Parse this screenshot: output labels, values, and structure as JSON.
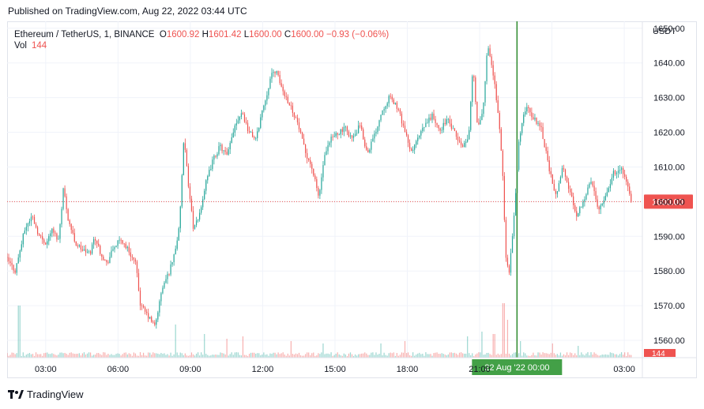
{
  "header": {
    "published": "Published on TradingView.com, Aug 22, 2022 03:44 UTC"
  },
  "legend": {
    "symbol": "Ethereum / TetherUS, 1, BINANCE",
    "open_label": "O",
    "open": "1600.92",
    "high_label": "H",
    "high": "1601.42",
    "low_label": "L",
    "low": "1600.00",
    "close_label": "C",
    "close": "1600.00",
    "change": "−0.93 (−0.06%)",
    "vol_label": "Vol",
    "vol": "144"
  },
  "price_axis": {
    "currency": "USDT"
  },
  "footer": {
    "brand": "TradingView"
  },
  "chart_data": {
    "type": "candlestick",
    "ylim": [
      1555,
      1652
    ],
    "y_ticks": [
      1560,
      1570,
      1580,
      1590,
      1600,
      1610,
      1620,
      1630,
      1640,
      1650
    ],
    "y_tick_labels": [
      "1560.00",
      "1570.00",
      "1580.00",
      "1590.00",
      "1600.00",
      "1610.00",
      "1620.00",
      "1630.00",
      "1640.00",
      "1650.00"
    ],
    "x_tick_labels": [
      "03:00",
      "06:00",
      "09:00",
      "12:00",
      "15:00",
      "18:00",
      "21:00",
      "00:00",
      "03:00"
    ],
    "x_tick_hours": [
      3,
      6,
      9,
      12,
      15,
      18,
      21,
      24,
      27
    ],
    "x_range_hours": [
      1.4,
      27.75
    ],
    "last_price": 1600.0,
    "last_price_label": "1600.00",
    "last_volume_label": "144",
    "crosshair": {
      "hour": 22.55,
      "label": "22 Aug '22   00:00"
    },
    "colors": {
      "up": "#26a69a",
      "down": "#ef5350",
      "crosshair": "#2e8b2e",
      "label_bg": "#43a047"
    },
    "price_path": [
      [
        1.4,
        1584
      ],
      [
        1.8,
        1580
      ],
      [
        2.2,
        1592
      ],
      [
        2.5,
        1596
      ],
      [
        2.8,
        1590
      ],
      [
        3.1,
        1588
      ],
      [
        3.3,
        1592
      ],
      [
        3.6,
        1589
      ],
      [
        3.8,
        1604
      ],
      [
        4.0,
        1595
      ],
      [
        4.3,
        1588
      ],
      [
        4.6,
        1586
      ],
      [
        4.9,
        1585
      ],
      [
        5.1,
        1590
      ],
      [
        5.3,
        1586
      ],
      [
        5.6,
        1582
      ],
      [
        5.9,
        1587
      ],
      [
        6.2,
        1589
      ],
      [
        6.5,
        1586
      ],
      [
        6.8,
        1582
      ],
      [
        7.0,
        1570
      ],
      [
        7.3,
        1567
      ],
      [
        7.6,
        1564
      ],
      [
        7.9,
        1575
      ],
      [
        8.2,
        1580
      ],
      [
        8.4,
        1585
      ],
      [
        8.6,
        1592
      ],
      [
        8.8,
        1618
      ],
      [
        9.0,
        1604
      ],
      [
        9.2,
        1592
      ],
      [
        9.4,
        1595
      ],
      [
        9.7,
        1605
      ],
      [
        10.0,
        1612
      ],
      [
        10.3,
        1616
      ],
      [
        10.6,
        1613
      ],
      [
        10.9,
        1622
      ],
      [
        11.2,
        1626
      ],
      [
        11.5,
        1620
      ],
      [
        11.8,
        1618
      ],
      [
        12.0,
        1625
      ],
      [
        12.2,
        1630
      ],
      [
        12.4,
        1636
      ],
      [
        12.6,
        1638
      ],
      [
        12.9,
        1632
      ],
      [
        13.2,
        1628
      ],
      [
        13.5,
        1623
      ],
      [
        13.8,
        1615
      ],
      [
        14.1,
        1610
      ],
      [
        14.4,
        1601
      ],
      [
        14.6,
        1612
      ],
      [
        14.9,
        1618
      ],
      [
        15.2,
        1620
      ],
      [
        15.5,
        1621
      ],
      [
        15.8,
        1618
      ],
      [
        16.1,
        1622
      ],
      [
        16.4,
        1614
      ],
      [
        16.7,
        1619
      ],
      [
        17.0,
        1626
      ],
      [
        17.3,
        1630
      ],
      [
        17.6,
        1628
      ],
      [
        17.9,
        1622
      ],
      [
        18.2,
        1614
      ],
      [
        18.5,
        1618
      ],
      [
        18.8,
        1622
      ],
      [
        19.1,
        1625
      ],
      [
        19.4,
        1620
      ],
      [
        19.7,
        1624
      ],
      [
        20.0,
        1620
      ],
      [
        20.3,
        1616
      ],
      [
        20.6,
        1618
      ],
      [
        20.8,
        1640
      ],
      [
        20.95,
        1622
      ],
      [
        21.2,
        1625
      ],
      [
        21.4,
        1646
      ],
      [
        21.6,
        1638
      ],
      [
        21.8,
        1628
      ],
      [
        22.0,
        1612
      ],
      [
        22.15,
        1584
      ],
      [
        22.3,
        1580
      ],
      [
        22.5,
        1596
      ],
      [
        22.7,
        1618
      ],
      [
        23.0,
        1628
      ],
      [
        23.3,
        1624
      ],
      [
        23.6,
        1622
      ],
      [
        23.8,
        1615
      ],
      [
        24.0,
        1608
      ],
      [
        24.2,
        1601
      ],
      [
        24.5,
        1610
      ],
      [
        24.8,
        1603
      ],
      [
        25.1,
        1596
      ],
      [
        25.4,
        1601
      ],
      [
        25.7,
        1606
      ],
      [
        26.0,
        1598
      ],
      [
        26.3,
        1602
      ],
      [
        26.6,
        1608
      ],
      [
        26.9,
        1610
      ],
      [
        27.2,
        1605
      ],
      [
        27.35,
        1600
      ]
    ],
    "volume_spikes": [
      [
        1.9,
        22
      ],
      [
        8.4,
        14
      ],
      [
        9.6,
        10
      ],
      [
        10.5,
        8
      ],
      [
        11.2,
        9
      ],
      [
        13.2,
        7
      ],
      [
        14.5,
        6
      ],
      [
        16.9,
        6
      ],
      [
        17.9,
        7
      ],
      [
        20.5,
        9
      ],
      [
        21.1,
        11
      ],
      [
        21.6,
        10
      ],
      [
        22.0,
        23
      ],
      [
        22.15,
        16
      ],
      [
        22.7,
        7
      ],
      [
        24.0,
        6
      ],
      [
        25.1,
        5
      ]
    ],
    "volume_max": 24
  }
}
